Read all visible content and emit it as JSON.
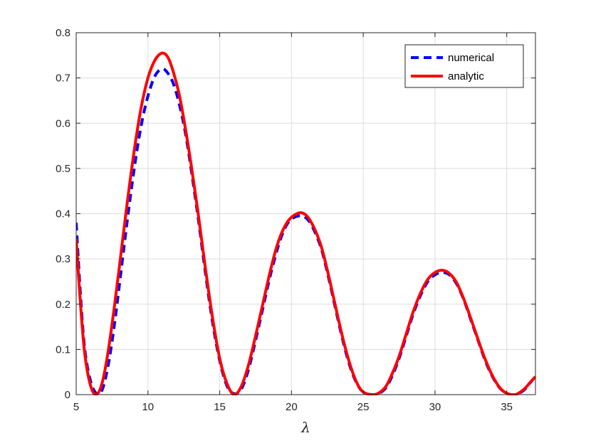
{
  "chart_data": {
    "type": "line",
    "title": "",
    "xlabel": "λ",
    "ylabel": "",
    "xlim": [
      5,
      37
    ],
    "ylim": [
      0,
      0.8
    ],
    "x_ticks": [
      "5",
      "10",
      "15",
      "20",
      "25",
      "30",
      "35"
    ],
    "y_ticks": [
      "0",
      "0.1",
      "0.2",
      "0.3",
      "0.4",
      "0.5",
      "0.6",
      "0.7",
      "0.8"
    ],
    "grid": true,
    "legend_position": "top-right",
    "series": [
      {
        "name": "numerical",
        "color": "#0000ff",
        "style": "dashed",
        "points": [
          [
            5.0,
            0.38
          ],
          [
            5.3,
            0.22
          ],
          [
            5.6,
            0.1
          ],
          [
            6.0,
            0.03
          ],
          [
            6.4,
            0.003
          ],
          [
            6.8,
            0.01
          ],
          [
            7.2,
            0.06
          ],
          [
            7.6,
            0.14
          ],
          [
            8.0,
            0.24
          ],
          [
            8.5,
            0.37
          ],
          [
            9.0,
            0.49
          ],
          [
            9.5,
            0.59
          ],
          [
            10.0,
            0.66
          ],
          [
            10.5,
            0.705
          ],
          [
            11.0,
            0.72
          ],
          [
            11.4,
            0.71
          ],
          [
            11.8,
            0.685
          ],
          [
            12.2,
            0.64
          ],
          [
            12.6,
            0.58
          ],
          [
            13.0,
            0.5
          ],
          [
            13.5,
            0.39
          ],
          [
            14.0,
            0.27
          ],
          [
            14.5,
            0.16
          ],
          [
            15.0,
            0.075
          ],
          [
            15.5,
            0.02
          ],
          [
            16.0,
            0.002
          ],
          [
            16.5,
            0.012
          ],
          [
            17.0,
            0.055
          ],
          [
            17.5,
            0.12
          ],
          [
            18.0,
            0.19
          ],
          [
            18.5,
            0.26
          ],
          [
            19.0,
            0.32
          ],
          [
            19.5,
            0.365
          ],
          [
            20.0,
            0.388
          ],
          [
            20.7,
            0.395
          ],
          [
            21.3,
            0.38
          ],
          [
            22.0,
            0.33
          ],
          [
            22.5,
            0.27
          ],
          [
            23.0,
            0.2
          ],
          [
            23.5,
            0.13
          ],
          [
            24.0,
            0.07
          ],
          [
            24.5,
            0.028
          ],
          [
            25.0,
            0.006
          ],
          [
            25.8,
            0.0
          ],
          [
            26.5,
            0.012
          ],
          [
            27.0,
            0.04
          ],
          [
            27.5,
            0.08
          ],
          [
            28.0,
            0.13
          ],
          [
            28.5,
            0.18
          ],
          [
            29.0,
            0.22
          ],
          [
            29.5,
            0.25
          ],
          [
            30.0,
            0.265
          ],
          [
            30.5,
            0.27
          ],
          [
            31.0,
            0.265
          ],
          [
            31.5,
            0.245
          ],
          [
            32.0,
            0.21
          ],
          [
            32.5,
            0.165
          ],
          [
            33.0,
            0.12
          ],
          [
            33.5,
            0.075
          ],
          [
            34.0,
            0.04
          ],
          [
            34.5,
            0.015
          ],
          [
            35.0,
            0.003
          ],
          [
            35.6,
            0.0
          ],
          [
            36.2,
            0.01
          ],
          [
            36.6,
            0.025
          ],
          [
            37.0,
            0.04
          ]
        ]
      },
      {
        "name": "analytic",
        "color": "#ff0000",
        "style": "solid",
        "points": [
          [
            5.0,
            0.345
          ],
          [
            5.3,
            0.2
          ],
          [
            5.6,
            0.09
          ],
          [
            6.0,
            0.02
          ],
          [
            6.4,
            0.0
          ],
          [
            6.8,
            0.025
          ],
          [
            7.2,
            0.09
          ],
          [
            7.6,
            0.18
          ],
          [
            8.0,
            0.28
          ],
          [
            8.5,
            0.41
          ],
          [
            9.0,
            0.53
          ],
          [
            9.5,
            0.63
          ],
          [
            10.0,
            0.7
          ],
          [
            10.5,
            0.74
          ],
          [
            11.0,
            0.755
          ],
          [
            11.4,
            0.745
          ],
          [
            11.8,
            0.71
          ],
          [
            12.2,
            0.66
          ],
          [
            12.6,
            0.59
          ],
          [
            13.0,
            0.51
          ],
          [
            13.5,
            0.4
          ],
          [
            14.0,
            0.28
          ],
          [
            14.5,
            0.17
          ],
          [
            15.0,
            0.08
          ],
          [
            15.5,
            0.025
          ],
          [
            16.0,
            0.0
          ],
          [
            16.5,
            0.018
          ],
          [
            17.0,
            0.065
          ],
          [
            17.5,
            0.13
          ],
          [
            18.0,
            0.2
          ],
          [
            18.5,
            0.27
          ],
          [
            19.0,
            0.33
          ],
          [
            19.5,
            0.37
          ],
          [
            20.0,
            0.392
          ],
          [
            20.7,
            0.402
          ],
          [
            21.3,
            0.385
          ],
          [
            22.0,
            0.335
          ],
          [
            22.5,
            0.275
          ],
          [
            23.0,
            0.205
          ],
          [
            23.5,
            0.135
          ],
          [
            24.0,
            0.075
          ],
          [
            24.5,
            0.03
          ],
          [
            25.0,
            0.006
          ],
          [
            25.8,
            0.0
          ],
          [
            26.5,
            0.015
          ],
          [
            27.0,
            0.045
          ],
          [
            27.5,
            0.085
          ],
          [
            28.0,
            0.135
          ],
          [
            28.5,
            0.185
          ],
          [
            29.0,
            0.225
          ],
          [
            29.5,
            0.255
          ],
          [
            30.0,
            0.27
          ],
          [
            30.5,
            0.275
          ],
          [
            31.0,
            0.268
          ],
          [
            31.5,
            0.248
          ],
          [
            32.0,
            0.212
          ],
          [
            32.5,
            0.168
          ],
          [
            33.0,
            0.122
          ],
          [
            33.5,
            0.078
          ],
          [
            34.0,
            0.042
          ],
          [
            34.5,
            0.016
          ],
          [
            35.0,
            0.003
          ],
          [
            35.6,
            0.0
          ],
          [
            36.2,
            0.012
          ],
          [
            36.6,
            0.026
          ],
          [
            37.0,
            0.04
          ]
        ]
      }
    ]
  }
}
